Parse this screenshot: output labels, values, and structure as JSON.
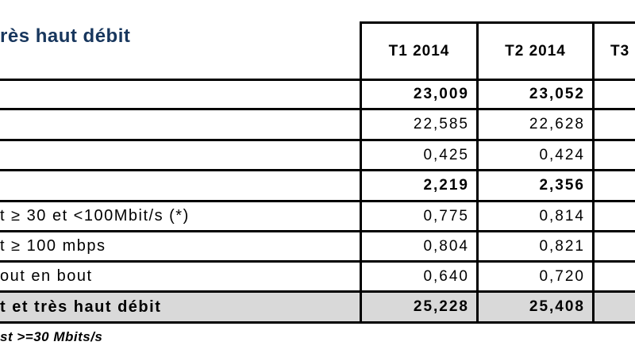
{
  "header": {
    "title_fragment": "rès haut débit"
  },
  "table": {
    "columns": [
      "T1 2014",
      "T2 2014",
      "T3"
    ],
    "rows": [
      {
        "label": "",
        "t1": "23,009",
        "t2": "23,052",
        "t3": "",
        "bold": true
      },
      {
        "label": "",
        "t1": "22,585",
        "t2": "22,628",
        "t3": "",
        "bold": false
      },
      {
        "label": "",
        "t1": "0,425",
        "t2": "0,424",
        "t3": "",
        "bold": false
      },
      {
        "label": "",
        "t1": "2,219",
        "t2": "2,356",
        "t3": "",
        "bold": true
      },
      {
        "label": "t ≥ 30 et <100Mbit/s (*)",
        "t1": "0,775",
        "t2": "0,814",
        "t3": "",
        "bold": false
      },
      {
        "label": "t ≥ 100 mbps",
        "t1": "0,804",
        "t2": "0,821",
        "t3": "",
        "bold": false
      },
      {
        "label": "out en bout",
        "t1": "0,640",
        "t2": "0,720",
        "t3": "",
        "bold": false
      },
      {
        "label": "t et très haut débit",
        "t1": "25,228",
        "t2": "25,408",
        "t3": "",
        "bold": true,
        "total": true
      }
    ]
  },
  "footer": {
    "note_fragment": "st >=30 Mbits/s"
  },
  "colors": {
    "title_text": "#17365d",
    "body_text": "#000000",
    "border": "#000000",
    "total_row_background": "#d9d9d9"
  }
}
